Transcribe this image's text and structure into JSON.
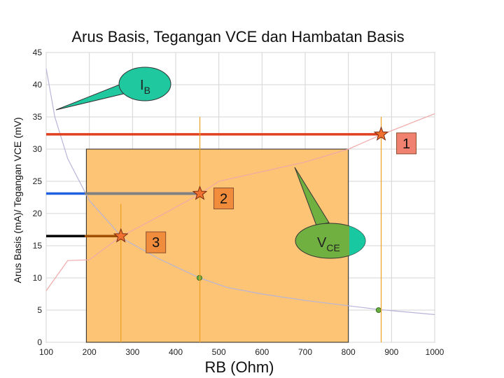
{
  "chart_data": {
    "type": "line",
    "title": "Arus Basis, Tegangan VCE dan Hambatan Basis",
    "xlabel": "RB (Ohm)",
    "ylabel": "Arus Basis (mA)/ Tegangan VCE (mV)",
    "xlim": [
      100,
      1000
    ],
    "ylim": [
      0,
      45
    ],
    "x_ticks": [
      "100",
      "200",
      "300",
      "400",
      "500",
      "600",
      "700",
      "800",
      "900",
      "1000"
    ],
    "y_ticks": [
      "0",
      "5",
      "10",
      "15",
      "20",
      "25",
      "30",
      "35",
      "40",
      "45"
    ],
    "grid": true,
    "series": [
      {
        "name": "IB",
        "color": "#b8b4d8",
        "points": [
          [
            100,
            42.5
          ],
          [
            120,
            35
          ],
          [
            150,
            28.5
          ],
          [
            200,
            22
          ],
          [
            280,
            16
          ],
          [
            360,
            13
          ],
          [
            455,
            10
          ],
          [
            520,
            8.5
          ],
          [
            600,
            7.5
          ],
          [
            700,
            6.5
          ],
          [
            870,
            5.1
          ],
          [
            1000,
            4.3
          ]
        ]
      },
      {
        "name": "VCE",
        "color": "#f0a8a8",
        "points": [
          [
            100,
            8
          ],
          [
            150,
            12.7
          ],
          [
            200,
            12.8
          ],
          [
            270,
            16.3
          ],
          [
            360,
            19.5
          ],
          [
            455,
            23
          ],
          [
            500,
            25
          ],
          [
            600,
            26.5
          ],
          [
            700,
            28
          ],
          [
            800,
            30
          ],
          [
            875,
            32.2
          ],
          [
            1000,
            35.5
          ]
        ]
      }
    ],
    "highlight_region": {
      "x": [
        193,
        800
      ],
      "y": [
        0,
        30
      ],
      "color": "#fcc474"
    },
    "markers": [
      {
        "label": "1",
        "x": 876,
        "y": 32.3,
        "hline_color": "#e04020",
        "vline_ymax": 35
      },
      {
        "label": "2",
        "x": 456,
        "y": 23.1,
        "hline_color": "#2060e0",
        "hline_overlay_color": "#808080",
        "vline_ymax": 35
      },
      {
        "label": "3",
        "x": 273,
        "y": 16.5,
        "hline_color": "#000000",
        "hline_overlay_color": "#a05000",
        "vline_ymax": 21.5
      }
    ],
    "points": [
      {
        "x": 455,
        "y": 10
      },
      {
        "x": 870,
        "y": 5
      }
    ],
    "callouts": [
      {
        "id": "ib",
        "main": "I",
        "sub": "B",
        "color": "#20c8a0"
      },
      {
        "id": "vce",
        "main": "V",
        "sub": "CE",
        "color": "#70b040"
      }
    ],
    "colors": {
      "star": "#f07030",
      "vline": "#f0a020",
      "label_box_1": "#f08070",
      "label_box_2_3": "#f08c3c",
      "grid": "#d4d4d4"
    }
  }
}
